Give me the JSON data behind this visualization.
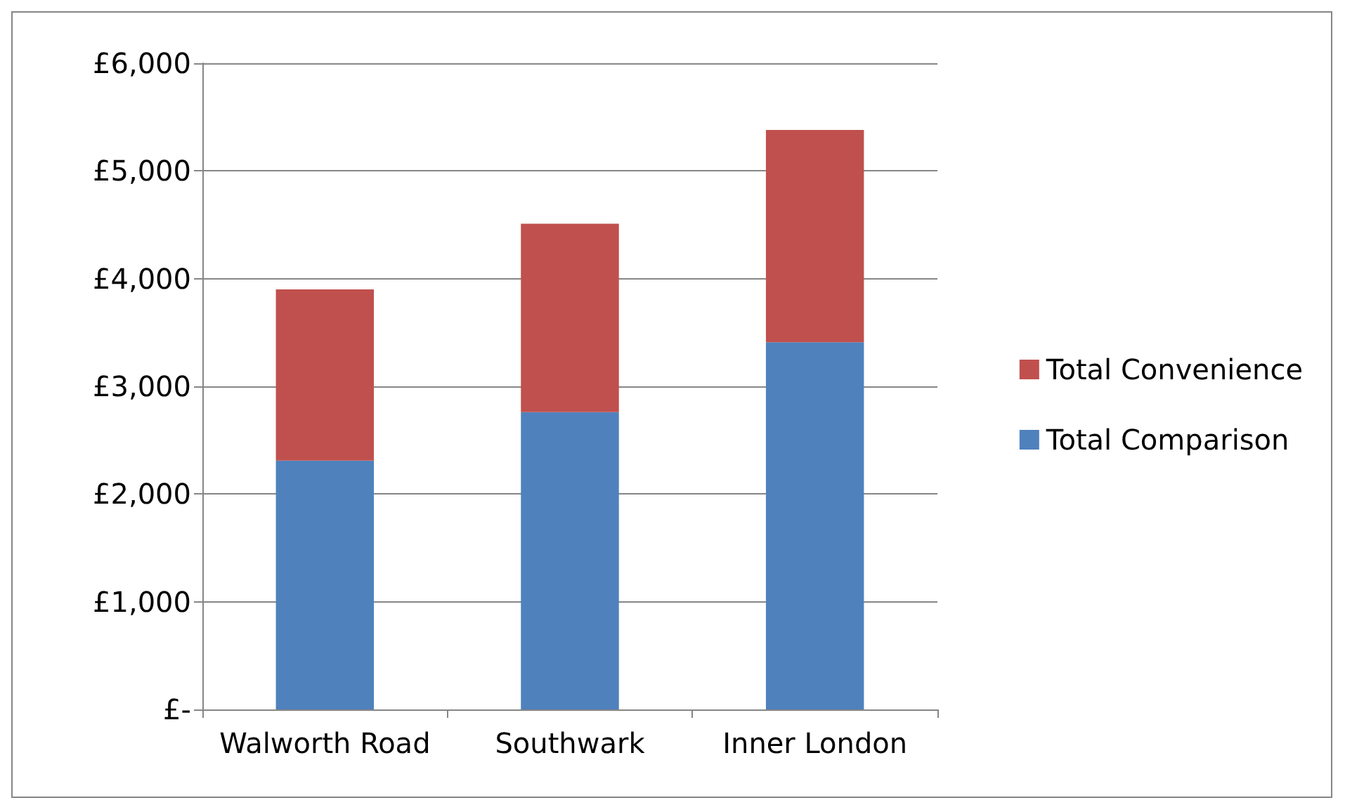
{
  "chart_data": {
    "type": "bar",
    "stacked": true,
    "categories": [
      "Walworth Road",
      "Southwark",
      "Inner London"
    ],
    "series": [
      {
        "name": "Total Comparison",
        "color": "#4f81bd",
        "values": [
          2310,
          2760,
          3410
        ]
      },
      {
        "name": "Total Convenience",
        "color": "#c0504d",
        "values": [
          1590,
          1750,
          1970
        ]
      }
    ],
    "ylim": [
      0,
      6000
    ],
    "yticks": [
      {
        "value": 0,
        "label": "£-"
      },
      {
        "value": 1000,
        "label": "£1,000"
      },
      {
        "value": 2000,
        "label": "£2,000"
      },
      {
        "value": 3000,
        "label": "£3,000"
      },
      {
        "value": 4000,
        "label": "£4,000"
      },
      {
        "value": 5000,
        "label": "£5,000"
      },
      {
        "value": 6000,
        "label": "£6,000"
      }
    ],
    "grid": "y",
    "legend": "right"
  }
}
